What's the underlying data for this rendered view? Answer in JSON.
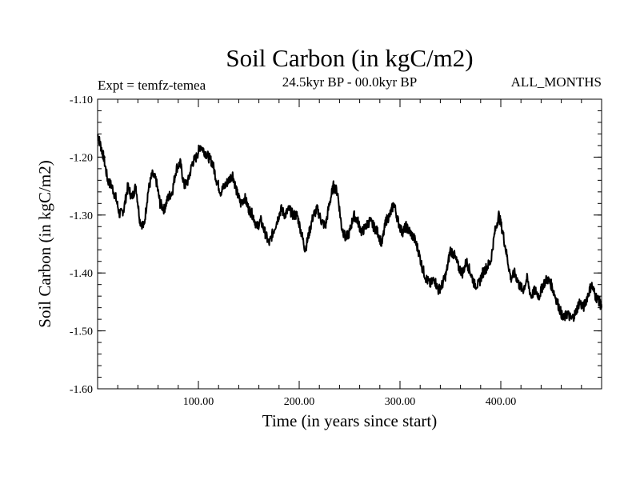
{
  "chart_data": {
    "type": "line",
    "title": "Soil Carbon (in kgC/m2)",
    "subtitle": "24.5kyr BP - 00.0kyr BP",
    "expt_label": "Expt = temfz-temea",
    "months_label": "ALL_MONTHS",
    "xlabel": "Time (in years since start)",
    "ylabel": "Soil Carbon (in kgC/m2)",
    "xlim": [
      0,
      500
    ],
    "ylim": [
      -1.6,
      -1.1
    ],
    "x_ticks": [
      100,
      200,
      300,
      400
    ],
    "x_tick_labels": [
      "100.00",
      "200.00",
      "300.00",
      "400.00"
    ],
    "y_ticks": [
      -1.1,
      -1.2,
      -1.3,
      -1.4,
      -1.5,
      -1.6
    ],
    "y_tick_labels": [
      "-1.10",
      "-1.20",
      "-1.30",
      "-1.40",
      "-1.50",
      "-1.60"
    ],
    "line_color": "#000000",
    "series": [
      {
        "name": "Soil Carbon",
        "x": [
          0,
          3,
          6,
          10,
          14,
          18,
          22,
          26,
          30,
          34,
          38,
          42,
          46,
          50,
          54,
          58,
          62,
          66,
          70,
          74,
          78,
          82,
          86,
          90,
          94,
          98,
          102,
          106,
          110,
          114,
          118,
          122,
          126,
          130,
          134,
          138,
          142,
          146,
          150,
          154,
          158,
          162,
          166,
          170,
          174,
          178,
          182,
          186,
          190,
          194,
          198,
          202,
          206,
          210,
          214,
          218,
          222,
          226,
          230,
          234,
          238,
          242,
          246,
          250,
          254,
          258,
          262,
          266,
          270,
          274,
          278,
          282,
          286,
          290,
          294,
          298,
          302,
          306,
          310,
          314,
          318,
          322,
          326,
          330,
          334,
          338,
          342,
          346,
          350,
          354,
          358,
          362,
          366,
          370,
          374,
          378,
          382,
          386,
          390,
          394,
          398,
          402,
          406,
          410,
          414,
          418,
          422,
          426,
          430,
          434,
          438,
          442,
          446,
          450,
          454,
          458,
          462,
          466,
          470,
          474,
          478,
          482,
          486,
          490,
          494,
          498,
          500
        ],
        "y": [
          -1.16,
          -1.18,
          -1.2,
          -1.24,
          -1.25,
          -1.27,
          -1.3,
          -1.29,
          -1.25,
          -1.27,
          -1.25,
          -1.31,
          -1.32,
          -1.26,
          -1.23,
          -1.24,
          -1.28,
          -1.29,
          -1.27,
          -1.26,
          -1.22,
          -1.21,
          -1.25,
          -1.24,
          -1.21,
          -1.2,
          -1.18,
          -1.19,
          -1.2,
          -1.21,
          -1.24,
          -1.26,
          -1.25,
          -1.24,
          -1.23,
          -1.26,
          -1.28,
          -1.27,
          -1.29,
          -1.3,
          -1.32,
          -1.31,
          -1.33,
          -1.35,
          -1.33,
          -1.31,
          -1.29,
          -1.3,
          -1.29,
          -1.3,
          -1.3,
          -1.33,
          -1.36,
          -1.33,
          -1.3,
          -1.29,
          -1.31,
          -1.32,
          -1.28,
          -1.25,
          -1.26,
          -1.32,
          -1.34,
          -1.33,
          -1.3,
          -1.31,
          -1.33,
          -1.32,
          -1.31,
          -1.32,
          -1.33,
          -1.35,
          -1.31,
          -1.3,
          -1.28,
          -1.31,
          -1.33,
          -1.32,
          -1.33,
          -1.34,
          -1.36,
          -1.39,
          -1.41,
          -1.42,
          -1.41,
          -1.43,
          -1.42,
          -1.4,
          -1.36,
          -1.37,
          -1.39,
          -1.4,
          -1.38,
          -1.4,
          -1.42,
          -1.42,
          -1.4,
          -1.39,
          -1.38,
          -1.33,
          -1.3,
          -1.33,
          -1.37,
          -1.41,
          -1.4,
          -1.42,
          -1.43,
          -1.41,
          -1.44,
          -1.43,
          -1.44,
          -1.42,
          -1.41,
          -1.42,
          -1.44,
          -1.46,
          -1.48,
          -1.47,
          -1.48,
          -1.47,
          -1.45,
          -1.46,
          -1.44,
          -1.42,
          -1.44,
          -1.45,
          -1.46
        ]
      }
    ]
  }
}
